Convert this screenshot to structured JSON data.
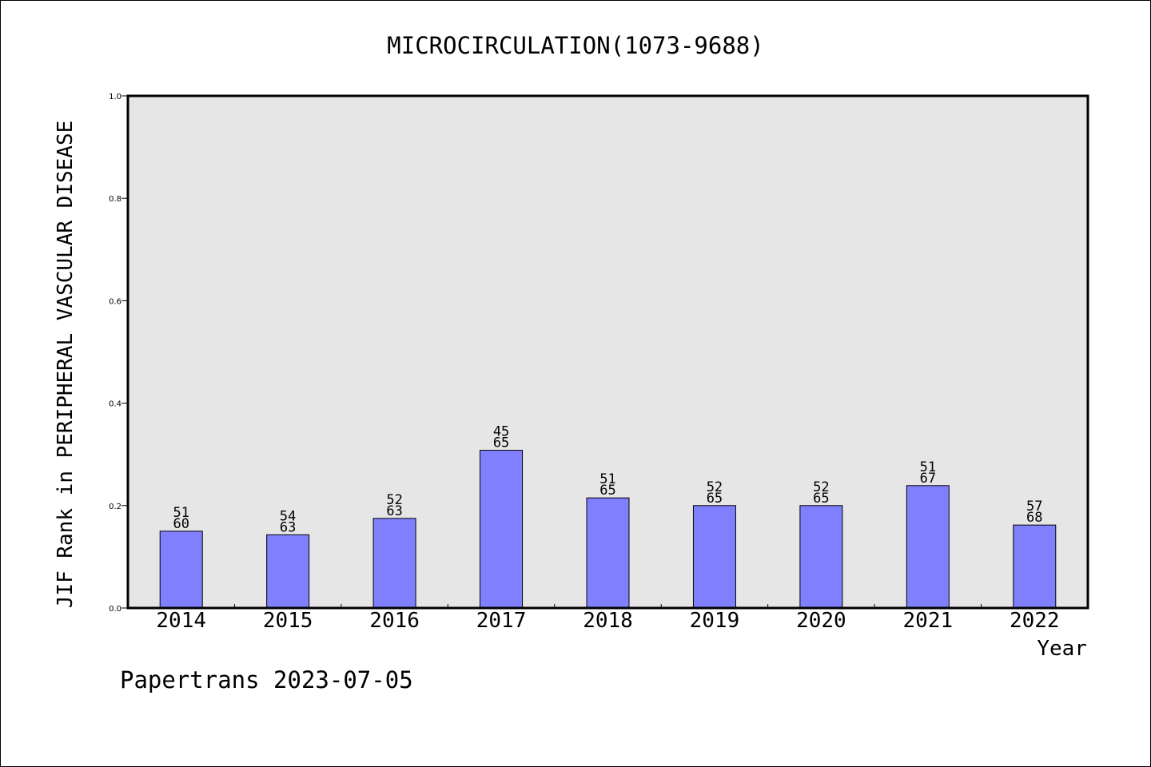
{
  "chart_data": {
    "type": "bar",
    "title": "MICROCIRCULATION(1073-9688)",
    "xlabel": "Year",
    "ylabel": "JIF Rank in PERIPHERAL VASCULAR DISEASE",
    "ylim": [
      0.0,
      1.0
    ],
    "yticks": [
      "0.0",
      "0.2",
      "0.4",
      "0.6",
      "0.8",
      "1.0"
    ],
    "categories": [
      "2014",
      "2015",
      "2016",
      "2017",
      "2018",
      "2019",
      "2020",
      "2021",
      "2022"
    ],
    "values": [
      0.15,
      0.143,
      0.175,
      0.308,
      0.215,
      0.2,
      0.2,
      0.239,
      0.162
    ],
    "rank": [
      "51",
      "54",
      "52",
      "45",
      "51",
      "52",
      "52",
      "51",
      "57"
    ],
    "total": [
      "60",
      "63",
      "63",
      "65",
      "65",
      "65",
      "65",
      "67",
      "68"
    ],
    "grid": false,
    "colors": {
      "bar": "#8080ff",
      "plot_background": "#e6e6e6"
    }
  },
  "footer": "Papertrans 2023-07-05"
}
